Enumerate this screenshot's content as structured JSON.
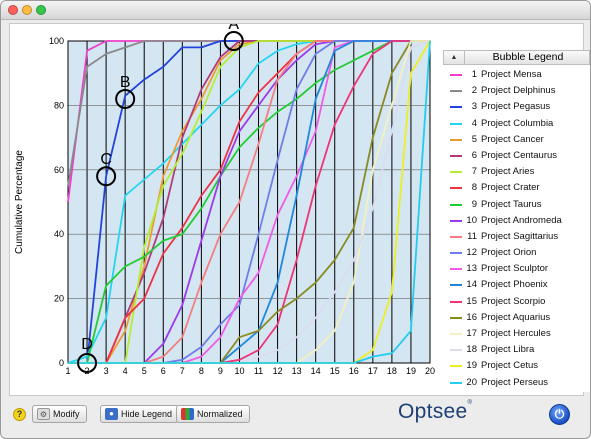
{
  "window": {
    "title": "",
    "controls": [
      "close-icon",
      "minimize-icon",
      "maximize-icon"
    ]
  },
  "chart_data": {
    "type": "line",
    "title": "",
    "xlabel": "",
    "ylabel": "Cumulative Percentage",
    "x": [
      1,
      2,
      3,
      4,
      5,
      6,
      7,
      8,
      9,
      10,
      11,
      12,
      13,
      14,
      15,
      16,
      17,
      18,
      19,
      20
    ],
    "xlim": [
      1,
      20
    ],
    "ylim": [
      0,
      100
    ],
    "yticks": [
      0,
      20,
      40,
      60,
      80,
      100
    ],
    "grid": true,
    "legend_position": "right",
    "annotations": [
      {
        "text": "A",
        "x": 9.7,
        "y": 100
      },
      {
        "text": "B",
        "x": 4.0,
        "y": 82
      },
      {
        "text": "C",
        "x": 3.0,
        "y": 58
      },
      {
        "text": "D",
        "x": 2.0,
        "y": 0
      }
    ],
    "series": [
      {
        "name": "Project Mensa",
        "color": "#ee3fc8",
        "values": [
          50,
          97,
          100,
          100,
          100,
          100,
          100,
          100,
          100,
          100,
          100,
          100,
          100,
          100,
          100,
          100,
          100,
          100,
          100,
          100
        ]
      },
      {
        "name": "Project Delphinus",
        "color": "#8a8a8a",
        "values": [
          55,
          92,
          96,
          98,
          100,
          100,
          100,
          100,
          100,
          100,
          100,
          100,
          100,
          100,
          100,
          100,
          100,
          100,
          100,
          100
        ]
      },
      {
        "name": "Project Pegasus",
        "color": "#2244dd",
        "values": [
          0,
          0,
          58,
          83,
          88,
          92,
          98,
          98,
          100,
          100,
          100,
          100,
          100,
          100,
          100,
          100,
          100,
          100,
          100,
          100
        ]
      },
      {
        "name": "Project Columbia",
        "color": "#22d6ee",
        "values": [
          0,
          2,
          14,
          52,
          57,
          62,
          68,
          74,
          80,
          85,
          93,
          97,
          99,
          100,
          100,
          100,
          100,
          100,
          100,
          100
        ]
      },
      {
        "name": "Project Cancer",
        "color": "#ee9a33",
        "values": [
          0,
          0,
          0,
          10,
          30,
          58,
          72,
          82,
          94,
          99,
          100,
          100,
          100,
          100,
          100,
          100,
          100,
          100,
          100,
          100
        ]
      },
      {
        "name": "Project Centaurus",
        "color": "#b23c7a",
        "values": [
          0,
          0,
          0,
          14,
          28,
          45,
          70,
          85,
          95,
          100,
          100,
          100,
          100,
          100,
          100,
          100,
          100,
          100,
          100,
          100
        ]
      },
      {
        "name": "Project Aries",
        "color": "#b4ee30",
        "values": [
          0,
          0,
          0,
          0,
          36,
          55,
          65,
          78,
          92,
          98,
          100,
          100,
          100,
          100,
          100,
          100,
          100,
          100,
          100,
          100
        ]
      },
      {
        "name": "Project Crater",
        "color": "#ee3344",
        "values": [
          0,
          0,
          0,
          14,
          20,
          34,
          42,
          52,
          60,
          75,
          84,
          90,
          96,
          100,
          100,
          100,
          100,
          100,
          100,
          100
        ]
      },
      {
        "name": "Project Taurus",
        "color": "#22cc33",
        "values": [
          0,
          0,
          24,
          30,
          33,
          38,
          40,
          48,
          58,
          67,
          73,
          78,
          82,
          87,
          91,
          94,
          97,
          100,
          100,
          100
        ]
      },
      {
        "name": "Project Andromeda",
        "color": "#9a3ae8",
        "values": [
          0,
          0,
          0,
          0,
          0,
          6,
          18,
          38,
          58,
          72,
          80,
          88,
          94,
          99,
          100,
          100,
          100,
          100,
          100,
          100
        ]
      },
      {
        "name": "Project Sagittarius",
        "color": "#f27f7f",
        "values": [
          0,
          0,
          0,
          0,
          0,
          2,
          8,
          25,
          40,
          50,
          68,
          88,
          96,
          100,
          100,
          100,
          100,
          100,
          100,
          100
        ]
      },
      {
        "name": "Project Orion",
        "color": "#6e7ee8",
        "values": [
          0,
          0,
          0,
          0,
          0,
          0,
          1,
          5,
          12,
          18,
          40,
          63,
          85,
          96,
          100,
          100,
          100,
          100,
          100,
          100
        ]
      },
      {
        "name": "Project Sculptor",
        "color": "#f05ae6",
        "values": [
          0,
          0,
          0,
          0,
          0,
          0,
          0,
          2,
          8,
          20,
          28,
          46,
          58,
          72,
          98,
          100,
          100,
          100,
          100,
          100
        ]
      },
      {
        "name": "Project Phoenix",
        "color": "#2088dd",
        "values": [
          0,
          0,
          0,
          0,
          0,
          0,
          0,
          0,
          0,
          5,
          10,
          25,
          52,
          82,
          97,
          100,
          100,
          100,
          100,
          100
        ]
      },
      {
        "name": "Project Scorpio",
        "color": "#ee3377",
        "values": [
          0,
          0,
          0,
          0,
          0,
          0,
          0,
          0,
          0,
          1,
          4,
          12,
          32,
          55,
          74,
          86,
          96,
          100,
          100,
          100
        ]
      },
      {
        "name": "Project Aquarius",
        "color": "#8a8a22",
        "values": [
          0,
          0,
          0,
          0,
          0,
          0,
          0,
          0,
          0,
          8,
          10,
          16,
          20,
          25,
          32,
          42,
          70,
          90,
          100,
          100
        ]
      },
      {
        "name": "Project Hercules",
        "color": "#f4f0c0",
        "values": [
          0,
          0,
          0,
          0,
          0,
          0,
          0,
          0,
          0,
          0,
          0,
          0,
          0,
          4,
          10,
          25,
          60,
          80,
          100,
          100
        ]
      },
      {
        "name": "Project Libra",
        "color": "#dcdcee",
        "values": [
          0,
          0,
          0,
          0,
          0,
          0,
          0,
          0,
          0,
          0,
          2,
          4,
          8,
          14,
          22,
          32,
          48,
          72,
          98,
          100
        ]
      },
      {
        "name": "Project Cetus",
        "color": "#eeee22",
        "values": [
          0,
          0,
          0,
          0,
          0,
          0,
          0,
          0,
          0,
          0,
          0,
          0,
          0,
          0,
          0,
          0,
          4,
          22,
          90,
          100
        ]
      },
      {
        "name": "Project Perseus",
        "color": "#22ccee",
        "values": [
          0,
          0,
          0,
          0,
          0,
          0,
          0,
          0,
          0,
          0,
          0,
          0,
          0,
          0,
          0,
          0,
          2,
          3,
          10,
          100
        ]
      }
    ]
  },
  "legend": {
    "title": "Bubble Legend",
    "sort_glyph": "▲",
    "numbers": [
      "1",
      "2",
      "3",
      "4",
      "5",
      "6",
      "7",
      "8",
      "9",
      "10",
      "11",
      "12",
      "13",
      "14",
      "15",
      "16",
      "17",
      "18",
      "19",
      "20"
    ]
  },
  "toolbar": {
    "help_label": "?",
    "modify_label": "Modify",
    "hide_legend_label": "Hide Legend",
    "normalized_label": "Normalized"
  },
  "brand": {
    "name": "Optsee",
    "mark": "®"
  }
}
